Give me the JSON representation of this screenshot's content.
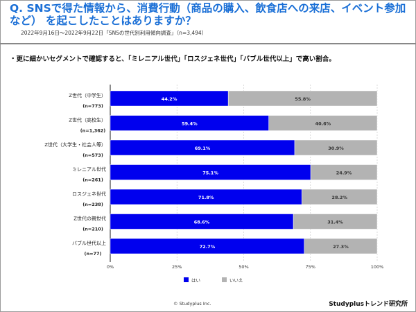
{
  "header": {
    "title": "Q. SNSで得た情報から、消費行動（商品の購入、飲食店への来店、イベント参加など） を起こしたことはありますか？",
    "subtitle": "2022年9月16日～2022年9月22日「SNSの世代別利用傾向調査」（n=3,494）"
  },
  "lead": "・更に細かいセグメントで確認すると、「ミレニアル世代」「ロスジェネ世代」「バブル世代以上」で高い割合。",
  "chart_data": {
    "type": "bar",
    "stacked": true,
    "orientation": "horizontal",
    "categories": [
      "Z世代（中学生）",
      "Z世代（高校生）",
      "Z世代（大学生・社会人等）",
      "ミレニアル世代",
      "ロスジェネ世代",
      "Z世代の親世代",
      "バブル世代以上"
    ],
    "sample_sizes": [
      "(n=773)",
      "(n=1,362)",
      "(n=573)",
      "(n=261)",
      "(n=238)",
      "(n=210)",
      "(n=77)"
    ],
    "series": [
      {
        "name": "はい",
        "color": "#0000ee",
        "values": [
          44.2,
          59.4,
          69.1,
          75.1,
          71.8,
          68.6,
          72.7
        ]
      },
      {
        "name": "いいえ",
        "color": "#b3b3b3",
        "values": [
          55.8,
          40.6,
          30.9,
          24.9,
          28.2,
          31.4,
          27.3
        ]
      }
    ],
    "xlim": [
      0,
      100
    ],
    "xticks": [
      "0%",
      "25%",
      "50%",
      "75%",
      "100%"
    ],
    "legend": "bottom"
  },
  "footer": {
    "copyright": "© Studyplus Inc.",
    "brand": "Studyplusトレンド研究所"
  }
}
